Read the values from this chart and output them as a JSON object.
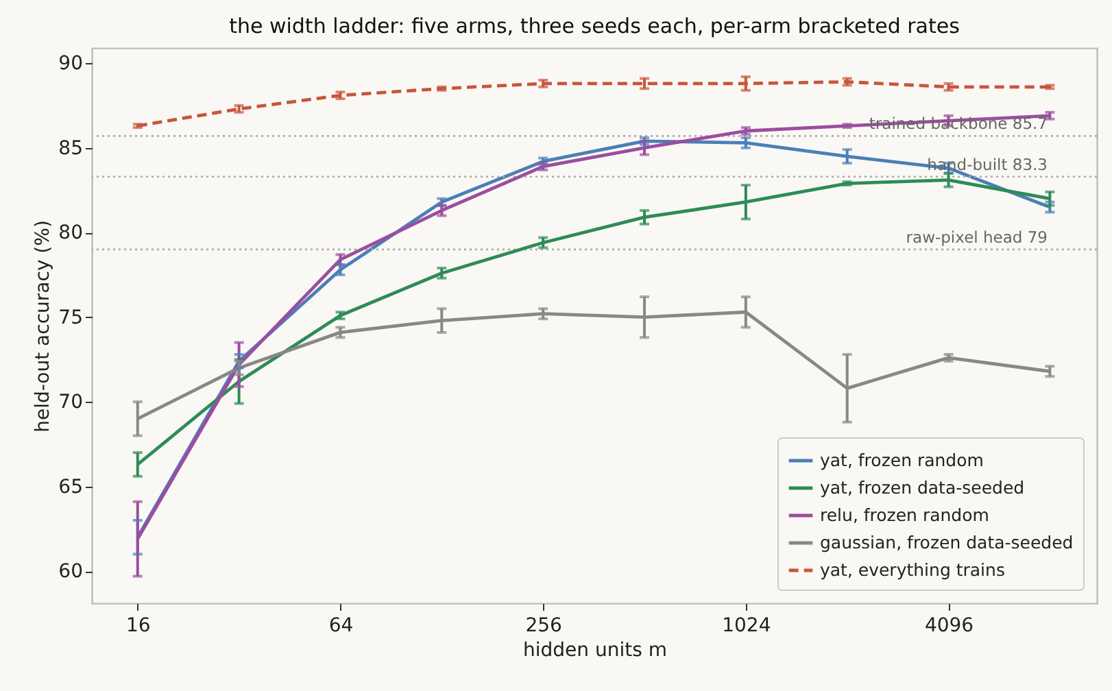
{
  "chart_data": {
    "type": "line",
    "title": "the width ladder: five arms, three seeds each, per-arm bracketed rates",
    "xlabel": "hidden units m",
    "ylabel": "held-out accuracy (%)",
    "x": [
      16,
      32,
      64,
      128,
      256,
      512,
      1024,
      2048,
      4096,
      8192
    ],
    "log": "x",
    "xlim": [
      11.7,
      11300
    ],
    "xticks": [
      16,
      64,
      256,
      1024,
      4096
    ],
    "ylim": [
      58.1,
      90.9
    ],
    "yticks": [
      60,
      65,
      70,
      75,
      80,
      85,
      90
    ],
    "grid": false,
    "legend": "bottom right",
    "marker": "none",
    "series": [
      {
        "name": "yat, frozen random",
        "color": "#4a7fb8",
        "line_style": "solid",
        "values": [
          62.0,
          72.4,
          77.8,
          81.8,
          84.2,
          85.4,
          85.3,
          84.5,
          83.8,
          81.5
        ],
        "errors": [
          1.0,
          0.4,
          0.3,
          0.2,
          0.2,
          0.2,
          0.3,
          0.4,
          0.3,
          0.3
        ]
      },
      {
        "name": "yat, frozen data-seeded",
        "color": "#2e8b57",
        "line_style": "solid",
        "values": [
          66.3,
          71.2,
          75.1,
          77.6,
          79.4,
          80.9,
          81.8,
          82.9,
          83.1,
          82.0
        ],
        "errors": [
          0.7,
          1.3,
          0.2,
          0.3,
          0.3,
          0.4,
          1.0,
          0.1,
          0.4,
          0.4
        ]
      },
      {
        "name": "relu, frozen random",
        "color": "#9b4da0",
        "line_style": "solid",
        "values": [
          61.9,
          72.2,
          78.4,
          81.3,
          83.9,
          85.0,
          86.0,
          86.3,
          86.6,
          86.9
        ],
        "errors": [
          2.2,
          1.3,
          0.3,
          0.3,
          0.2,
          0.4,
          0.2,
          0.1,
          0.3,
          0.2
        ]
      },
      {
        "name": "gaussian, frozen data-seeded",
        "color": "#888888",
        "line_style": "solid",
        "values": [
          69.0,
          72.0,
          74.1,
          74.8,
          75.2,
          75.0,
          75.3,
          70.8,
          72.6,
          71.8
        ],
        "errors": [
          1.0,
          0.4,
          0.3,
          0.7,
          0.3,
          1.2,
          0.9,
          2.0,
          0.2,
          0.3
        ]
      },
      {
        "name": "yat, everything trains",
        "color": "#c8553d",
        "line_style": "dashed",
        "values": [
          86.3,
          87.3,
          88.1,
          88.5,
          88.8,
          88.8,
          88.8,
          88.9,
          88.6,
          88.6
        ],
        "errors": [
          0.1,
          0.2,
          0.2,
          0.1,
          0.2,
          0.3,
          0.4,
          0.2,
          0.2,
          0.1
        ]
      }
    ],
    "ref_lines": [
      {
        "axis": "y",
        "value": 85.7,
        "label": "trained backbone 85.7",
        "color": "#aaaaaa",
        "line_style": "dotted"
      },
      {
        "axis": "y",
        "value": 83.3,
        "label": "hand-built 83.3",
        "color": "#aaaaaa",
        "line_style": "dotted"
      },
      {
        "axis": "y",
        "value": 79,
        "label": "raw-pixel head 79",
        "color": "#aaaaaa",
        "line_style": "dotted"
      }
    ]
  }
}
